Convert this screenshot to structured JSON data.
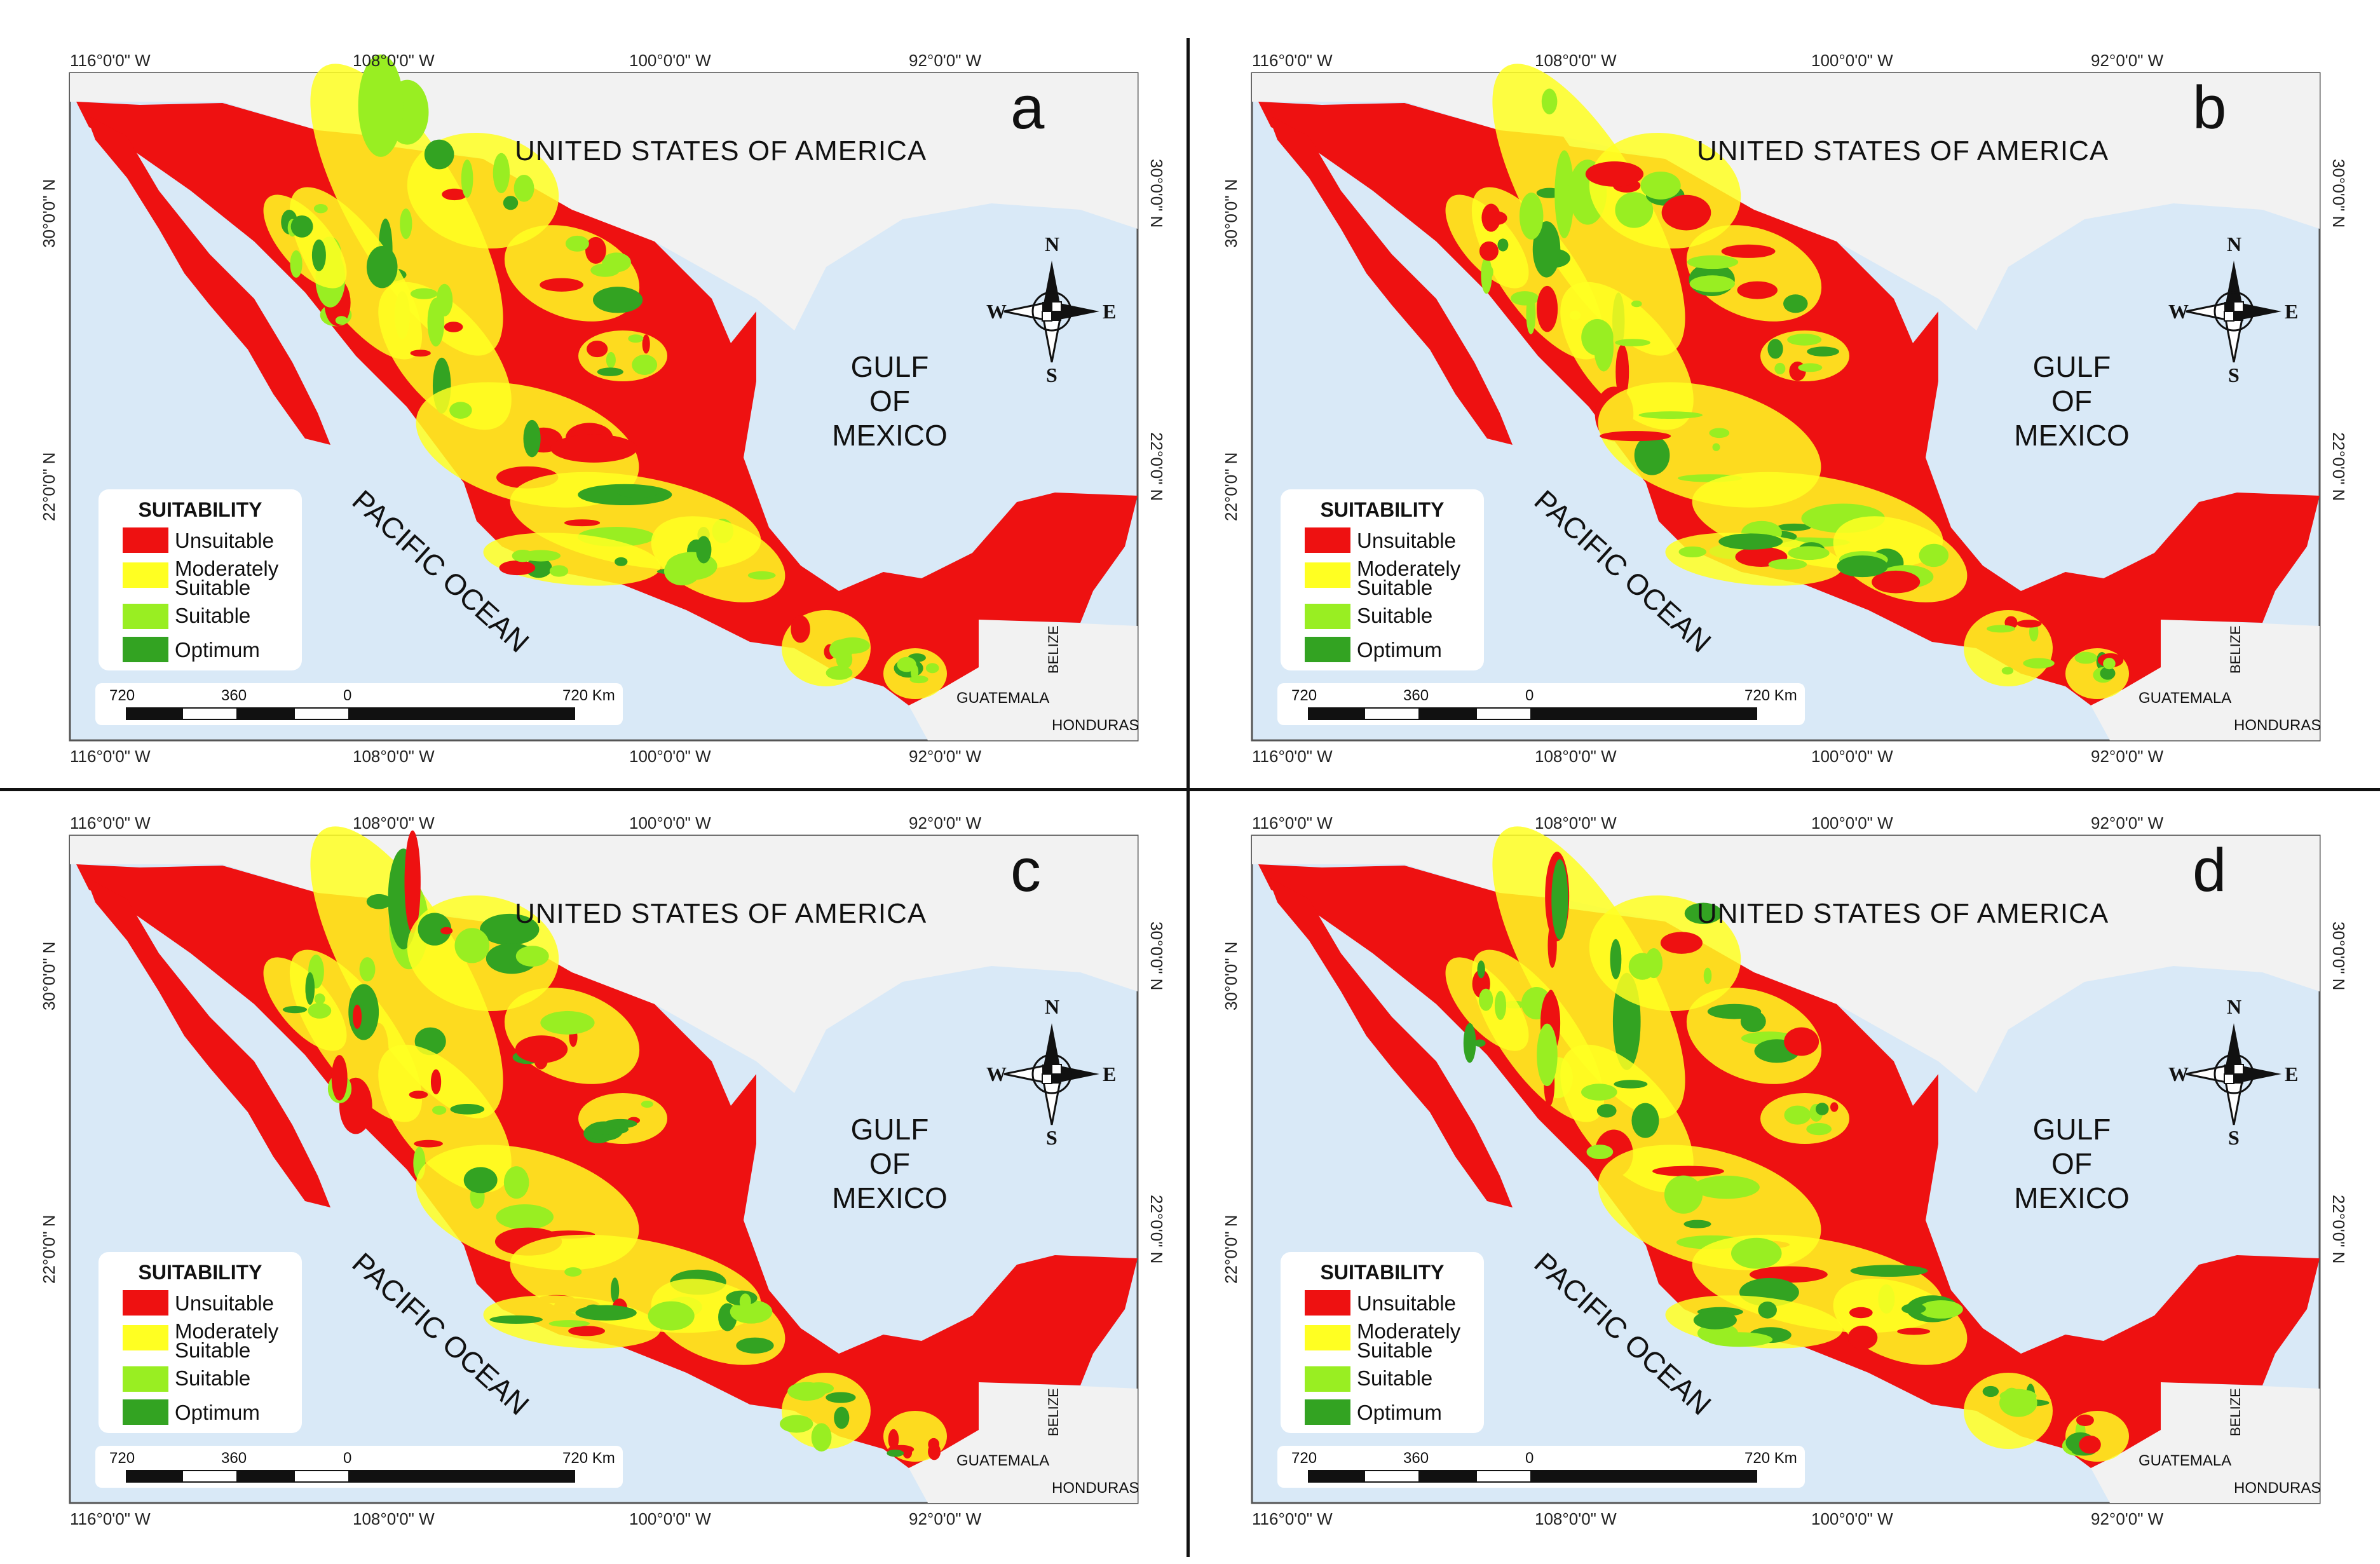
{
  "figure": {
    "lon_labels": [
      "116°0'0\" W",
      "108°0'0\" W",
      "100°0'0\" W",
      "92°0'0\" W"
    ],
    "lat_labels": [
      "30°0'0\" N",
      "22°0'0\" N"
    ],
    "labels": {
      "usa": "UNITED STATES OF AMERICA",
      "gulf": [
        "GULF",
        "OF",
        "MEXICO"
      ],
      "pacific": "PACIFIC OCEAN",
      "guatemala": "GUATEMALA",
      "belize": "BELIZE",
      "honduras": "HONDURAS"
    },
    "compass": {
      "n": "N",
      "s": "S",
      "e": "E",
      "w": "W"
    },
    "legend": {
      "title": "SUITABILITY",
      "items": [
        {
          "label": "Unsuitable",
          "color": "#ee1111"
        },
        {
          "label": "Moderately\nSuitable",
          "color": "#ffff22"
        },
        {
          "label": "Suitable",
          "color": "#99ee22"
        },
        {
          "label": "Optimum",
          "color": "#33a322"
        }
      ]
    },
    "scalebar": {
      "ticks": [
        "720",
        "360",
        "0",
        "720 Km"
      ]
    },
    "colors": {
      "sea": "#d9e9f7",
      "land_foreign": "#f2f2f2",
      "unsuitable": "#ee1111",
      "moderate": "#ffff22",
      "suitable": "#99ee22",
      "optimum": "#33a322"
    },
    "panels": [
      {
        "letter": "a"
      },
      {
        "letter": "b"
      },
      {
        "letter": "c"
      },
      {
        "letter": "d"
      }
    ]
  }
}
